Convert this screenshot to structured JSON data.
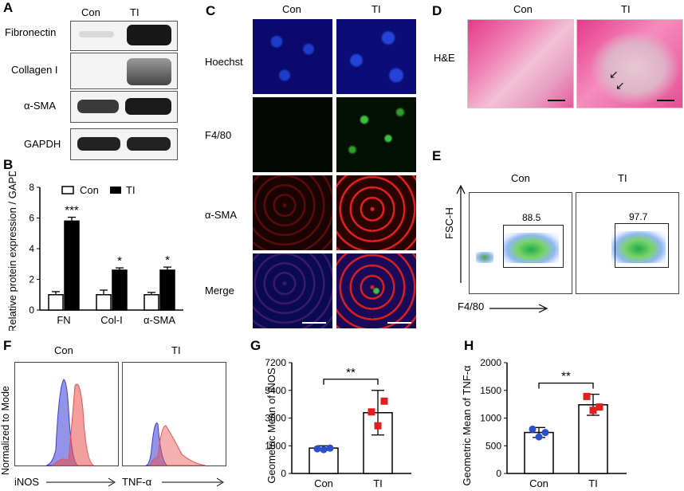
{
  "panelA": {
    "letter": "A",
    "col_labels": [
      "Con",
      "TI"
    ],
    "row_labels": [
      "Fibronectin",
      "Collagen I",
      "α-SMA",
      "GAPDH"
    ]
  },
  "panelB": {
    "letter": "B",
    "legend": [
      "Con",
      "TI"
    ],
    "ylabel": "Relative protein expression / GAPDH",
    "sig": [
      "***",
      "*",
      "*"
    ]
  },
  "panelC": {
    "letter": "C",
    "col_labels": [
      "Con",
      "TI"
    ],
    "row_labels": [
      "Hoechst",
      "F4/80",
      "α-SMA",
      "Merge"
    ]
  },
  "panelD": {
    "letter": "D",
    "col_labels": [
      "Con",
      "TI"
    ],
    "row_label": "H&E"
  },
  "panelE": {
    "letter": "E",
    "col_labels": [
      "Con",
      "TI"
    ],
    "ylabel": "FSC-H",
    "xlabel": "F4/80",
    "gate_values": [
      "88.5",
      "97.7"
    ]
  },
  "panelF": {
    "letter": "F",
    "col_labels": [
      "Con",
      "TI"
    ],
    "ylabel": "Normalized to Mode",
    "xlabels": [
      "iNOS",
      "TNF-α"
    ],
    "colors": {
      "blue": "#3b3bd6",
      "red": "#e8504f"
    }
  },
  "panelG": {
    "letter": "G",
    "ylabel": "Geometric Mean of iNOS",
    "sig": "**"
  },
  "panelH": {
    "letter": "H",
    "ylabel": "Geometric Mean of TNF-α",
    "sig": "**"
  },
  "chart_data": [
    {
      "id": "B",
      "type": "bar",
      "categories": [
        "FN",
        "Col-I",
        "α-SMA"
      ],
      "series": [
        {
          "name": "Con",
          "values": [
            1.0,
            1.0,
            1.0
          ],
          "errors": [
            0.2,
            0.3,
            0.15
          ],
          "color": "#ffffff"
        },
        {
          "name": "TI",
          "values": [
            5.8,
            2.6,
            2.6
          ],
          "errors": [
            0.25,
            0.15,
            0.2
          ],
          "color": "#000000"
        }
      ],
      "ylim": [
        0,
        8
      ],
      "yticks": [
        0,
        2,
        4,
        6,
        8
      ]
    },
    {
      "id": "G",
      "type": "bar",
      "categories": [
        "Con",
        "TI"
      ],
      "values": [
        1650,
        3950
      ],
      "errors": [
        150,
        1450
      ],
      "points": [
        [
          1600,
          1550,
          1650
        ],
        [
          4000,
          3100,
          4700
        ]
      ],
      "point_colors": [
        "#2a4fc9",
        "#e11d1d"
      ],
      "ylim": [
        0,
        7200
      ],
      "yticks": [
        0,
        1800,
        3600,
        5400,
        7200
      ]
    },
    {
      "id": "H",
      "type": "bar",
      "categories": [
        "Con",
        "TI"
      ],
      "values": [
        740,
        1240
      ],
      "errors": [
        90,
        190
      ],
      "points": [
        [
          800,
          660,
          740
        ],
        [
          1390,
          1140,
          1200
        ]
      ],
      "point_colors": [
        "#2a4fc9",
        "#e11d1d"
      ],
      "ylim": [
        0,
        2000
      ],
      "yticks": [
        0,
        500,
        1000,
        1500,
        2000
      ]
    }
  ]
}
